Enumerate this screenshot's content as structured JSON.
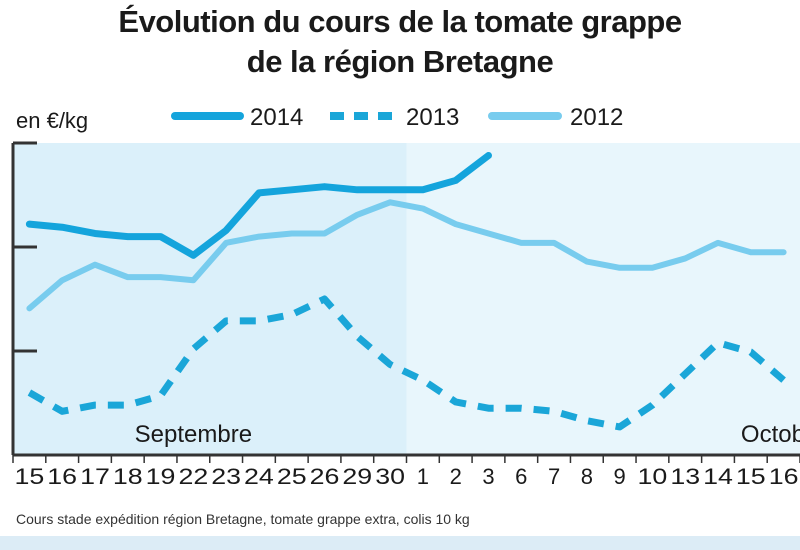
{
  "title_line1": "Évolution du cours de la tomate grappe",
  "title_line2": "de la région Bretagne",
  "unit_label": "en €/kg",
  "source_note": "Cours stade expédition région Bretagne, tomate grappe extra, colis 10 kg",
  "colors": {
    "s2014": "#14a4dc",
    "s2013": "#1aa6d8",
    "s2012": "#78ccee",
    "plot_bg_left": "#dbf0fa",
    "plot_bg_right": "#e8f6fc",
    "axis": "#333333"
  },
  "chart_data": {
    "type": "line",
    "title": "Évolution du cours de la tomate grappe de la région Bretagne",
    "ylabel": "en €/kg",
    "grid": false,
    "legend_position": "top",
    "month_labels": [
      {
        "label": "Septembre",
        "at_index": 5
      },
      {
        "label": "Octobre",
        "at_index": 23
      }
    ],
    "categories": [
      "15",
      "16",
      "17",
      "18",
      "19",
      "22",
      "23",
      "24",
      "25",
      "26",
      "29",
      "30",
      "1",
      "2",
      "3",
      "6",
      "7",
      "8",
      "9",
      "10",
      "13",
      "14",
      "15",
      "16"
    ],
    "series": [
      {
        "name": "2014",
        "style": "solid-thick",
        "values": [
          0.74,
          0.73,
          0.71,
          0.7,
          0.7,
          0.64,
          0.72,
          0.84,
          0.85,
          0.86,
          0.85,
          0.85,
          0.85,
          0.88,
          0.96,
          null,
          null,
          null,
          null,
          null,
          null,
          null,
          null,
          null
        ]
      },
      {
        "name": "2013",
        "style": "dashed",
        "values": [
          0.2,
          0.14,
          0.16,
          0.16,
          0.19,
          0.34,
          0.43,
          0.43,
          0.45,
          0.5,
          0.38,
          0.29,
          0.24,
          0.17,
          0.15,
          0.15,
          0.14,
          0.11,
          0.09,
          0.16,
          0.26,
          0.36,
          0.33,
          0.24
        ]
      },
      {
        "name": "2012",
        "style": "solid",
        "values": [
          0.47,
          0.56,
          0.61,
          0.57,
          0.57,
          0.56,
          0.68,
          0.7,
          0.71,
          0.71,
          0.77,
          0.81,
          0.79,
          0.74,
          0.71,
          0.68,
          0.68,
          0.62,
          0.6,
          0.6,
          0.63,
          0.68,
          0.65,
          0.65
        ]
      }
    ]
  }
}
